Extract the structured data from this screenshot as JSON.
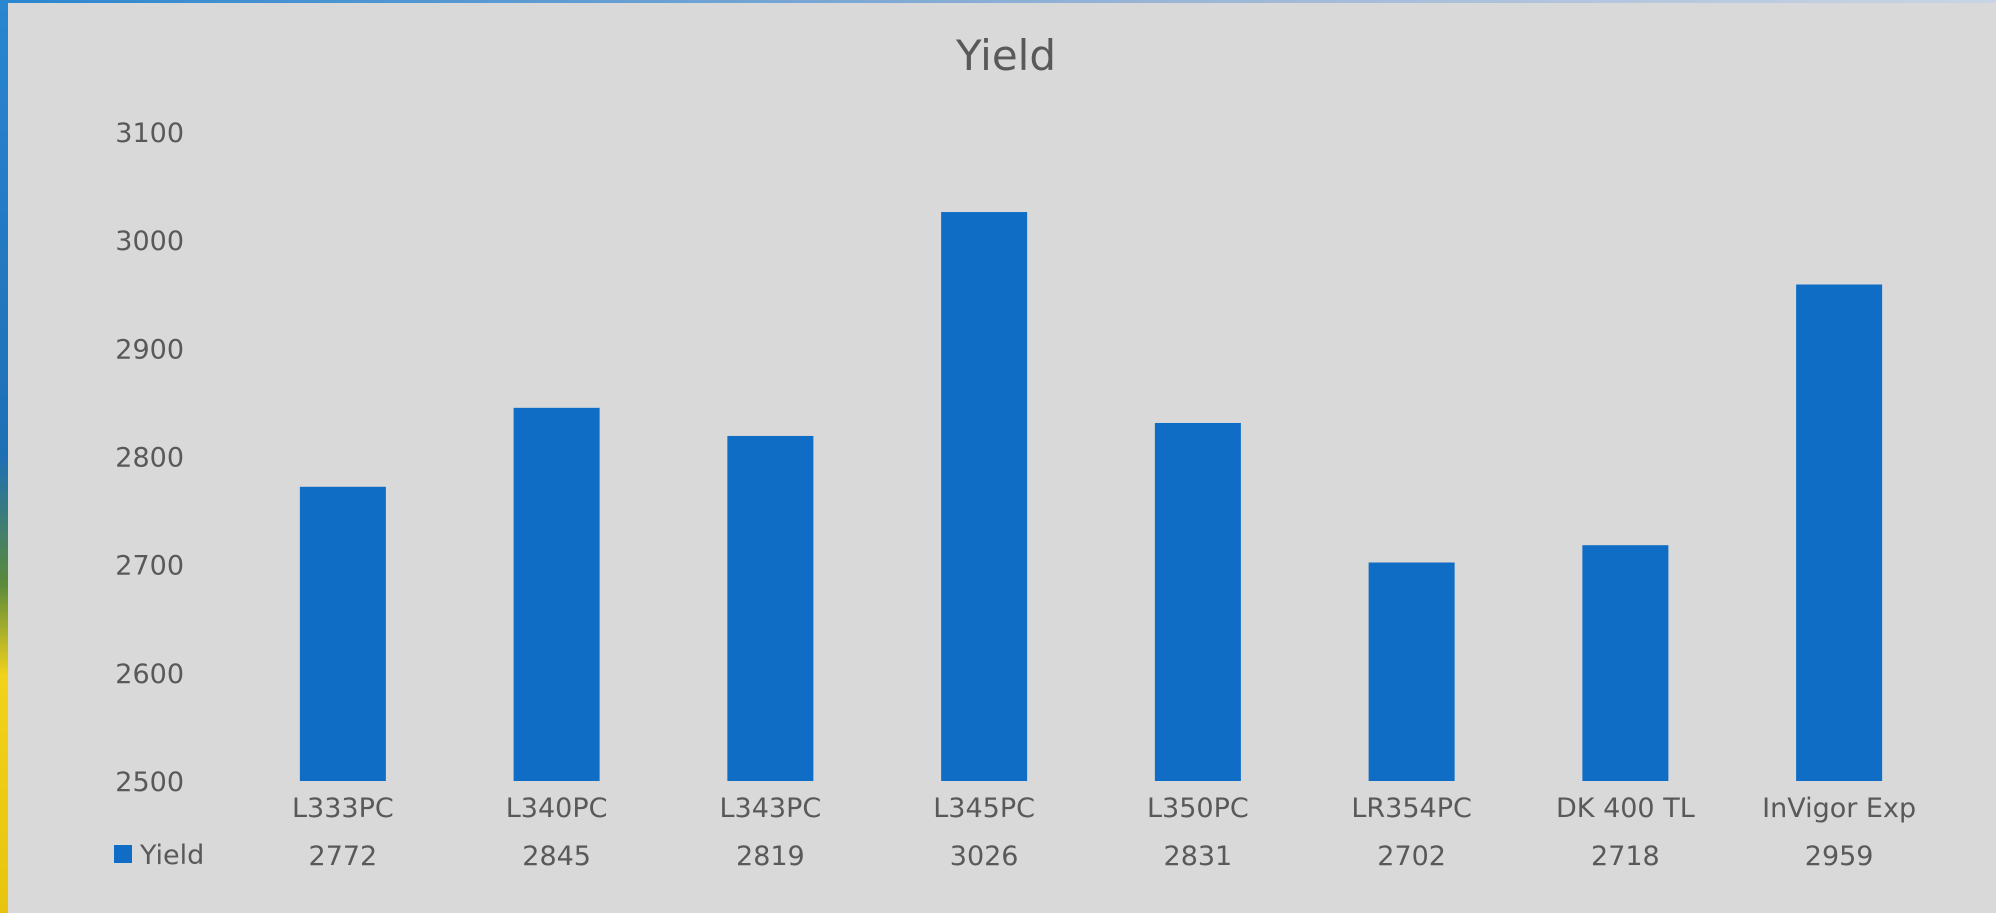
{
  "chart_data": {
    "type": "bar",
    "title": "Yield",
    "xlabel": "",
    "ylabel": "",
    "categories": [
      "L333PC",
      "L340PC",
      "L343PC",
      "L345PC",
      "L350PC",
      "LR354PC",
      "DK 400 TL",
      "InVigor Exp"
    ],
    "series": [
      {
        "name": "Yield",
        "values": [
          2772,
          2845,
          2819,
          3026,
          2831,
          2702,
          2718,
          2959
        ],
        "color": "#0f6dc6"
      }
    ],
    "ylim": [
      2500,
      3100
    ],
    "yticks": [
      2500,
      2600,
      2700,
      2800,
      2900,
      3000,
      3100
    ],
    "gridlines": false,
    "legend_position": "bottom-left",
    "data_table": true
  }
}
